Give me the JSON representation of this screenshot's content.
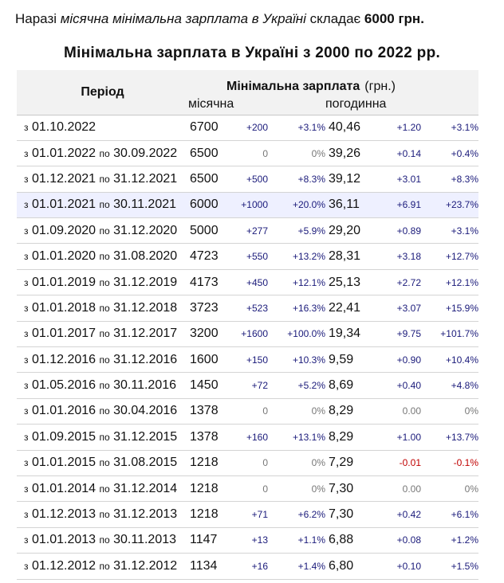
{
  "intro": {
    "prefix": "Наразі ",
    "italic": "місячна мінімальна зарплата в Україні",
    "mid": " складає ",
    "amount": "6000 грн."
  },
  "title": "Мінімальна зарплата в Україні з 2000 по 2022 рр.",
  "table": {
    "col_period": "Період",
    "col_salary": "Мінімальна зарплата",
    "col_unit": "(грн.)",
    "col_monthly": "місячна",
    "col_hourly": "погодинна",
    "rows": [
      {
        "from": "з",
        "d1": "01.10.2022",
        "to": "",
        "d2": "",
        "m": "6700",
        "md": "+200",
        "mp": "+3.1%",
        "h": "40,46",
        "hd": "+1.20",
        "hp": "+3.1%"
      },
      {
        "from": "з",
        "d1": "01.01.2022",
        "to": "по",
        "d2": "30.09.2022",
        "m": "6500",
        "md": "0",
        "mp": "0%",
        "h": "39,26",
        "hd": "+0.14",
        "hp": "+0.4%"
      },
      {
        "from": "з",
        "d1": "01.12.2021",
        "to": "по",
        "d2": "31.12.2021",
        "m": "6500",
        "md": "+500",
        "mp": "+8.3%",
        "h": "39,12",
        "hd": "+3.01",
        "hp": "+8.3%"
      },
      {
        "from": "з",
        "d1": "01.01.2021",
        "to": "по",
        "d2": "30.11.2021",
        "m": "6000",
        "md": "+1000",
        "mp": "+20.0%",
        "h": "36,11",
        "hd": "+6.91",
        "hp": "+23.7%"
      },
      {
        "from": "з",
        "d1": "01.09.2020",
        "to": "по",
        "d2": "31.12.2020",
        "m": "5000",
        "md": "+277",
        "mp": "+5.9%",
        "h": "29,20",
        "hd": "+0.89",
        "hp": "+3.1%"
      },
      {
        "from": "з",
        "d1": "01.01.2020",
        "to": "по",
        "d2": "31.08.2020",
        "m": "4723",
        "md": "+550",
        "mp": "+13.2%",
        "h": "28,31",
        "hd": "+3.18",
        "hp": "+12.7%"
      },
      {
        "from": "з",
        "d1": "01.01.2019",
        "to": "по",
        "d2": "31.12.2019",
        "m": "4173",
        "md": "+450",
        "mp": "+12.1%",
        "h": "25,13",
        "hd": "+2.72",
        "hp": "+12.1%"
      },
      {
        "from": "з",
        "d1": "01.01.2018",
        "to": "по",
        "d2": "31.12.2018",
        "m": "3723",
        "md": "+523",
        "mp": "+16.3%",
        "h": "22,41",
        "hd": "+3.07",
        "hp": "+15.9%"
      },
      {
        "from": "з",
        "d1": "01.01.2017",
        "to": "по",
        "d2": "31.12.2017",
        "m": "3200",
        "md": "+1600",
        "mp": "+100.0%",
        "h": "19,34",
        "hd": "+9.75",
        "hp": "+101.7%"
      },
      {
        "from": "з",
        "d1": "01.12.2016",
        "to": "по",
        "d2": "31.12.2016",
        "m": "1600",
        "md": "+150",
        "mp": "+10.3%",
        "h": "9,59",
        "hd": "+0.90",
        "hp": "+10.4%"
      },
      {
        "from": "з",
        "d1": "01.05.2016",
        "to": "по",
        "d2": "30.11.2016",
        "m": "1450",
        "md": "+72",
        "mp": "+5.2%",
        "h": "8,69",
        "hd": "+0.40",
        "hp": "+4.8%"
      },
      {
        "from": "з",
        "d1": "01.01.2016",
        "to": "по",
        "d2": "30.04.2016",
        "m": "1378",
        "md": "0",
        "mp": "0%",
        "h": "8,29",
        "hd": "0.00",
        "hp": "0%"
      },
      {
        "from": "з",
        "d1": "01.09.2015",
        "to": "по",
        "d2": "31.12.2015",
        "m": "1378",
        "md": "+160",
        "mp": "+13.1%",
        "h": "8,29",
        "hd": "+1.00",
        "hp": "+13.7%"
      },
      {
        "from": "з",
        "d1": "01.01.2015",
        "to": "по",
        "d2": "31.08.2015",
        "m": "1218",
        "md": "0",
        "mp": "0%",
        "h": "7,29",
        "hd": "-0.01",
        "hp": "-0.1%"
      },
      {
        "from": "з",
        "d1": "01.01.2014",
        "to": "по",
        "d2": "31.12.2014",
        "m": "1218",
        "md": "0",
        "mp": "0%",
        "h": "7,30",
        "hd": "0.00",
        "hp": "0%"
      },
      {
        "from": "з",
        "d1": "01.12.2013",
        "to": "по",
        "d2": "31.12.2013",
        "m": "1218",
        "md": "+71",
        "mp": "+6.2%",
        "h": "7,30",
        "hd": "+0.42",
        "hp": "+6.1%"
      },
      {
        "from": "з",
        "d1": "01.01.2013",
        "to": "по",
        "d2": "30.11.2013",
        "m": "1147",
        "md": "+13",
        "mp": "+1.1%",
        "h": "6,88",
        "hd": "+0.08",
        "hp": "+1.2%"
      },
      {
        "from": "з",
        "d1": "01.12.2012",
        "to": "по",
        "d2": "31.12.2012",
        "m": "1134",
        "md": "+16",
        "mp": "+1.4%",
        "h": "6,80",
        "hd": "+0.10",
        "hp": "+1.5%"
      }
    ]
  },
  "colors": {
    "header_bg": "#f2f2f2",
    "highlight_bg": "#eef0ff",
    "delta_text": "#1a1a7a",
    "negative_text": "#c00000",
    "zero_text": "#777777"
  },
  "highlight_row": 3
}
